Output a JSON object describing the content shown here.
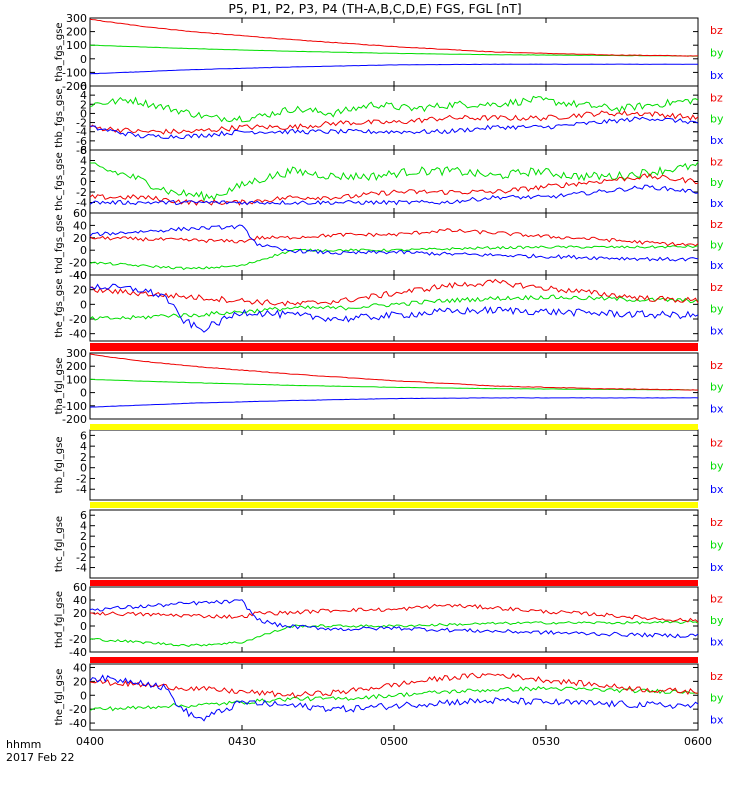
{
  "title": "P5, P1, P2, P3, P4 (TH-A,B,C,D,E) FGS, FGL [nT]",
  "footer": {
    "time_label": "hhmm",
    "date_label": "2017 Feb 22"
  },
  "colors": {
    "bx": "#0000ff",
    "by": "#00dd00",
    "bz": "#ee0000",
    "bar_red": "#ff0000",
    "bar_yellow": "#ffff00"
  },
  "chart_data": {
    "type": "line",
    "x_ticks": [
      "0400",
      "0430",
      "0500",
      "0530",
      "0600"
    ],
    "x_range": [
      "04:00",
      "06:00"
    ],
    "legend_labels": [
      "bz",
      "by",
      "bx"
    ],
    "panels": [
      {
        "label": "tha_fgs_gse",
        "has_data": true,
        "y_range": [
          -200,
          300
        ],
        "y_ticks": [
          "300",
          "200",
          "100",
          "0",
          "-100",
          "-200"
        ],
        "series": {
          "bz": {
            "t": [
              0,
              10,
              20,
              40,
              60,
              80,
              100,
              120
            ],
            "v": [
              290,
              240,
              200,
              140,
              90,
              50,
              30,
              20
            ],
            "noise": 2
          },
          "by": {
            "t": [
              0,
              20,
              40,
              60,
              80,
              100,
              120
            ],
            "v": [
              100,
              75,
              55,
              40,
              30,
              25,
              20
            ],
            "noise": 1
          },
          "bx": {
            "t": [
              0,
              20,
              40,
              60,
              80,
              100,
              120
            ],
            "v": [
              -110,
              -80,
              -60,
              -45,
              -40,
              -40,
              -40
            ],
            "noise": 1
          }
        }
      },
      {
        "label": "thb_fgs_gse",
        "has_data": true,
        "y_range": [
          -8,
          6
        ],
        "y_ticks": [
          "6",
          "4",
          "2",
          "0",
          "-2",
          "-4",
          "-6",
          "-8"
        ],
        "series": {
          "by": {
            "t": [
              0,
              8,
              16,
              24,
              32,
              40,
              48,
              56,
              64,
              72,
              80,
              88,
              96,
              104,
              112,
              120
            ],
            "v": [
              2,
              3,
              1,
              -1,
              -1,
              1,
              0,
              2,
              1,
              2,
              2,
              3,
              2,
              1,
              2,
              3
            ],
            "noise": 0.8
          },
          "bz": {
            "t": [
              0,
              10,
              20,
              30,
              40,
              50,
              60,
              70,
              80,
              90,
              100,
              110,
              120
            ],
            "v": [
              -3,
              -4,
              -4,
              -3,
              -3,
              -2,
              -2,
              -1,
              -1,
              -1,
              0,
              0,
              -1
            ],
            "noise": 0.6
          },
          "bx": {
            "t": [
              0,
              10,
              20,
              30,
              40,
              50,
              60,
              70,
              80,
              90,
              100,
              110,
              120
            ],
            "v": [
              -3,
              -5,
              -5,
              -4,
              -4,
              -4,
              -4,
              -4,
              -3,
              -3,
              -2,
              -1,
              -2
            ],
            "noise": 0.5
          }
        }
      },
      {
        "label": "thc_fgs_gse",
        "has_data": true,
        "y_range": [
          -6,
          6
        ],
        "y_ticks": [
          "6",
          "4",
          "2",
          "0",
          "-2",
          "-4"
        ],
        "series": {
          "by": {
            "t": [
              0,
              8,
              16,
              24,
              32,
              40,
              48,
              56,
              64,
              72,
              80,
              88,
              96,
              104,
              112,
              120
            ],
            "v": [
              3,
              1,
              -2,
              -3,
              0,
              2,
              1,
              1,
              2,
              2,
              1,
              2,
              1,
              1,
              2,
              3
            ],
            "noise": 0.8
          },
          "bz": {
            "t": [
              0,
              10,
              20,
              30,
              40,
              50,
              60,
              70,
              80,
              90,
              100,
              110,
              120
            ],
            "v": [
              -3,
              -3,
              -4,
              -4,
              -3,
              -3,
              -2,
              -2,
              -2,
              -1,
              0,
              1,
              0
            ],
            "noise": 0.5
          },
          "bx": {
            "t": [
              0,
              10,
              20,
              30,
              40,
              50,
              60,
              70,
              80,
              90,
              100,
              110,
              120
            ],
            "v": [
              -4,
              -4,
              -4,
              -4,
              -4,
              -4,
              -4,
              -4,
              -3,
              -3,
              -2,
              -1,
              -2
            ],
            "noise": 0.4
          }
        }
      },
      {
        "label": "thd_fgs_gse",
        "has_data": true,
        "y_range": [
          -40,
          60
        ],
        "y_ticks": [
          "60",
          "40",
          "20",
          "0",
          "-20",
          "-40"
        ],
        "series": {
          "bx": {
            "t": [
              0,
              10,
              20,
              30,
              33,
              38,
              50,
              60,
              70,
              80,
              90,
              100,
              110,
              116,
              120
            ],
            "v": [
              25,
              30,
              35,
              38,
              10,
              0,
              -5,
              -3,
              -6,
              -8,
              -10,
              -12,
              -14,
              -15,
              -14
            ],
            "noise": 3
          },
          "bz": {
            "t": [
              0,
              10,
              20,
              30,
              33,
              38,
              50,
              60,
              70,
              80,
              90,
              100,
              110,
              120
            ],
            "v": [
              20,
              18,
              16,
              14,
              20,
              20,
              25,
              25,
              32,
              28,
              22,
              18,
              12,
              8
            ],
            "noise": 3
          },
          "by": {
            "t": [
              0,
              10,
              20,
              30,
              35,
              40,
              50,
              60,
              70,
              80,
              90,
              100,
              110,
              120
            ],
            "v": [
              -20,
              -25,
              -30,
              -25,
              -12,
              0,
              0,
              0,
              2,
              4,
              5,
              5,
              5,
              6
            ],
            "noise": 2
          }
        }
      },
      {
        "label": "the_fgs_gse",
        "has_data": true,
        "y_range": [
          -50,
          40
        ],
        "y_ticks": [
          "40",
          "20",
          "0",
          "-20",
          "-40"
        ],
        "series": {
          "bx": {
            "t": [
              0,
              10,
              15,
              18,
              22,
              30,
              40,
              50,
              60,
              70,
              80,
              90,
              100,
              110,
              120
            ],
            "v": [
              25,
              20,
              10,
              -20,
              -35,
              -10,
              -15,
              -20,
              -15,
              -10,
              -8,
              -10,
              -12,
              -14,
              -15
            ],
            "noise": 5
          },
          "bz": {
            "t": [
              0,
              10,
              20,
              30,
              40,
              50,
              60,
              70,
              80,
              90,
              100,
              110,
              120
            ],
            "v": [
              20,
              15,
              10,
              5,
              0,
              5,
              15,
              25,
              30,
              22,
              15,
              8,
              5
            ],
            "noise": 4
          },
          "by": {
            "t": [
              0,
              10,
              15,
              20,
              30,
              40,
              50,
              60,
              70,
              80,
              90,
              100,
              110,
              120
            ],
            "v": [
              -20,
              -18,
              -15,
              -15,
              -10,
              -5,
              -5,
              0,
              5,
              8,
              10,
              8,
              6,
              5
            ],
            "noise": 3
          }
        }
      },
      {
        "label": "tha_fgl_gse",
        "has_data": true,
        "y_range": [
          -200,
          300
        ],
        "y_ticks": [
          "300",
          "200",
          "100",
          "0",
          "-100",
          "-200"
        ],
        "series": {
          "bz": {
            "t": [
              0,
              10,
              20,
              40,
              60,
              80,
              100,
              120
            ],
            "v": [
              290,
              240,
              200,
              140,
              90,
              50,
              30,
              20
            ],
            "noise": 2
          },
          "by": {
            "t": [
              0,
              20,
              40,
              60,
              80,
              100,
              120
            ],
            "v": [
              100,
              75,
              55,
              40,
              30,
              25,
              20
            ],
            "noise": 1
          },
          "bx": {
            "t": [
              0,
              20,
              40,
              60,
              80,
              100,
              120
            ],
            "v": [
              -110,
              -80,
              -60,
              -45,
              -40,
              -40,
              -40
            ],
            "noise": 1
          }
        }
      },
      {
        "label": "thb_fgl_gse",
        "has_data": false,
        "y_range": [
          -6,
          7
        ],
        "y_ticks": [
          "6",
          "4",
          "2",
          "0",
          "-2",
          "-4"
        ]
      },
      {
        "label": "thc_fgl_gse",
        "has_data": false,
        "y_range": [
          -6,
          7
        ],
        "y_ticks": [
          "6",
          "4",
          "2",
          "0",
          "-2",
          "-4"
        ]
      },
      {
        "label": "thd_fgl_gse",
        "has_data": true,
        "y_range": [
          -40,
          60
        ],
        "y_ticks": [
          "60",
          "40",
          "20",
          "0",
          "-20",
          "-40"
        ],
        "series": {
          "bx": {
            "t": [
              0,
              10,
              20,
              30,
              33,
              38,
              50,
              60,
              70,
              80,
              90,
              100,
              110,
              116,
              120
            ],
            "v": [
              25,
              30,
              35,
              38,
              10,
              0,
              -5,
              -3,
              -6,
              -8,
              -10,
              -12,
              -14,
              -15,
              -14
            ],
            "noise": 3
          },
          "bz": {
            "t": [
              0,
              10,
              20,
              30,
              33,
              38,
              50,
              60,
              70,
              80,
              90,
              100,
              110,
              120
            ],
            "v": [
              20,
              18,
              16,
              14,
              20,
              20,
              25,
              25,
              32,
              28,
              22,
              18,
              12,
              8
            ],
            "noise": 3
          },
          "by": {
            "t": [
              0,
              10,
              20,
              30,
              35,
              40,
              50,
              60,
              70,
              80,
              90,
              100,
              110,
              120
            ],
            "v": [
              -20,
              -25,
              -30,
              -25,
              -12,
              0,
              0,
              0,
              2,
              4,
              5,
              5,
              5,
              6
            ],
            "noise": 2
          }
        }
      },
      {
        "label": "the_fgl_gse",
        "has_data": true,
        "y_range": [
          -50,
          45
        ],
        "y_ticks": [
          "40",
          "20",
          "0",
          "-20",
          "-40"
        ],
        "series": {
          "bx": {
            "t": [
              0,
              10,
              15,
              18,
              22,
              30,
              40,
              50,
              60,
              70,
              80,
              90,
              100,
              110,
              120
            ],
            "v": [
              25,
              20,
              10,
              -20,
              -35,
              -10,
              -15,
              -20,
              -15,
              -10,
              -8,
              -10,
              -12,
              -14,
              -15
            ],
            "noise": 5
          },
          "bz": {
            "t": [
              0,
              10,
              20,
              30,
              40,
              50,
              60,
              70,
              80,
              90,
              100,
              110,
              120
            ],
            "v": [
              20,
              15,
              10,
              5,
              0,
              5,
              15,
              25,
              30,
              22,
              15,
              8,
              5
            ],
            "noise": 4
          },
          "by": {
            "t": [
              0,
              10,
              15,
              20,
              30,
              40,
              50,
              60,
              70,
              80,
              90,
              100,
              110,
              120
            ],
            "v": [
              -20,
              -18,
              -15,
              -15,
              -10,
              -5,
              -5,
              0,
              5,
              8,
              10,
              8,
              6,
              5
            ],
            "noise": 3
          }
        }
      }
    ],
    "separator_bars": [
      {
        "after_panel": 4,
        "color": "red"
      },
      {
        "after_panel": 5,
        "color": "yellow"
      },
      {
        "after_panel": 6,
        "color": "yellow"
      },
      {
        "after_panel": 7,
        "color": "red"
      },
      {
        "after_panel": 8,
        "color": "red"
      }
    ]
  }
}
